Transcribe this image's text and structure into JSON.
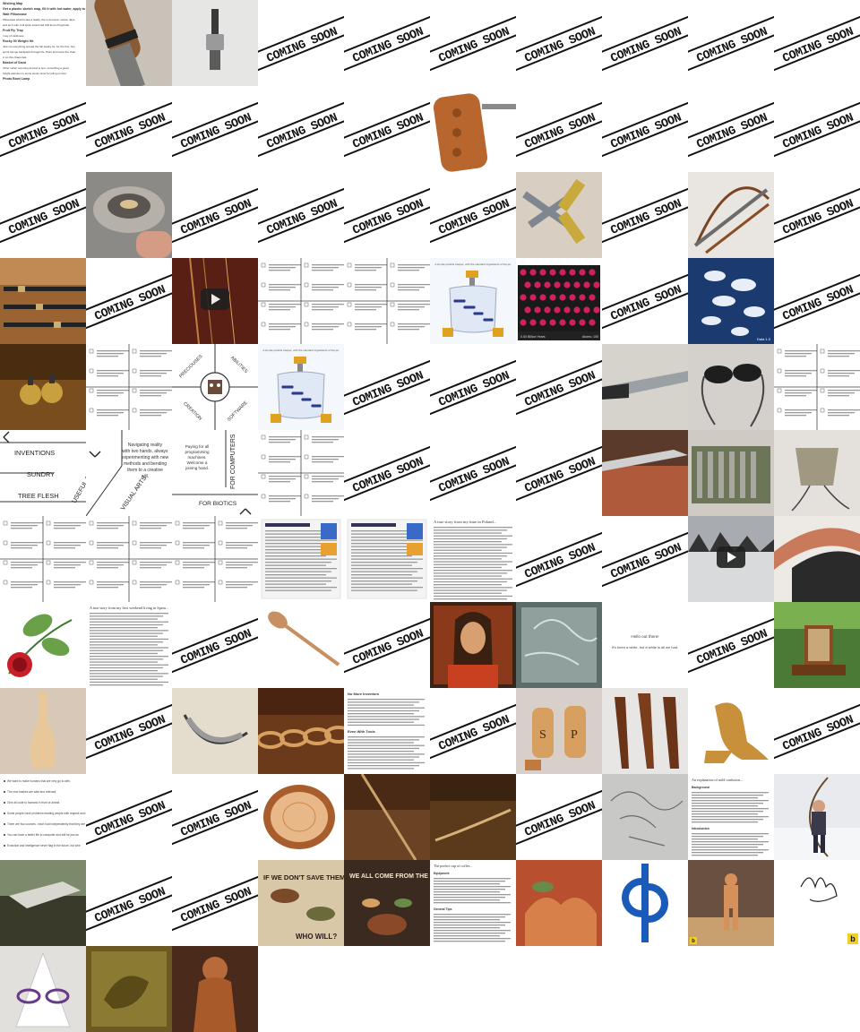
{
  "coming_soon_text": "COMING SOON",
  "gallery": {
    "tiles": [
      {
        "kind": "doc",
        "name": "wishing-map-notes"
      },
      {
        "kind": "photo",
        "name": "wood-handle-tool-photo"
      },
      {
        "kind": "photo",
        "name": "metal-fitting-photo"
      },
      {
        "kind": "cs"
      },
      {
        "kind": "cs"
      },
      {
        "kind": "cs"
      },
      {
        "kind": "cs"
      },
      {
        "kind": "cs"
      },
      {
        "kind": "cs"
      },
      {
        "kind": "cs"
      },
      {
        "kind": "cs"
      },
      {
        "kind": "cs"
      },
      {
        "kind": "cs"
      },
      {
        "kind": "cs"
      },
      {
        "kind": "cs"
      },
      {
        "kind": "photo",
        "name": "carved-wood-handle-photo"
      },
      {
        "kind": "cs"
      },
      {
        "kind": "cs"
      },
      {
        "kind": "cs"
      },
      {
        "kind": "cs"
      },
      {
        "kind": "cs"
      },
      {
        "kind": "photo",
        "name": "stone-bowl-photo"
      },
      {
        "kind": "cs"
      },
      {
        "kind": "cs"
      },
      {
        "kind": "cs"
      },
      {
        "kind": "cs"
      },
      {
        "kind": "photo",
        "name": "crossed-blades-photo"
      },
      {
        "kind": "cs"
      },
      {
        "kind": "photo",
        "name": "bow-and-sword-photo"
      },
      {
        "kind": "cs"
      },
      {
        "kind": "photo",
        "name": "wooden-sticks-photo"
      },
      {
        "kind": "cs"
      },
      {
        "kind": "video",
        "name": "harp-video-thumbnail"
      },
      {
        "kind": "doc",
        "name": "text-grid-doc"
      },
      {
        "kind": "doc",
        "name": "text-grid-doc"
      },
      {
        "kind": "doc",
        "name": "machine-diagram-doc"
      },
      {
        "kind": "doc",
        "name": "red-dots-doc"
      },
      {
        "kind": "cs"
      },
      {
        "kind": "photo",
        "name": "clouds-space-photo"
      },
      {
        "kind": "cs"
      },
      {
        "kind": "photo",
        "name": "wooden-fruit-carving-photo"
      },
      {
        "kind": "doc",
        "name": "text-grid-doc"
      },
      {
        "kind": "doc",
        "name": "abilities-wheel-doc"
      },
      {
        "kind": "doc",
        "name": "machine-diagram-doc"
      },
      {
        "kind": "cs"
      },
      {
        "kind": "cs"
      },
      {
        "kind": "cs"
      },
      {
        "kind": "photo",
        "name": "hand-saw-photo"
      },
      {
        "kind": "photo",
        "name": "sunglasses-photo"
      },
      {
        "kind": "doc",
        "name": "text-grid-doc"
      },
      {
        "kind": "doc",
        "name": "inventions-wheel-left"
      },
      {
        "kind": "doc",
        "name": "inventions-wheel-center"
      },
      {
        "kind": "doc",
        "name": "inventions-wheel-right"
      },
      {
        "kind": "doc",
        "name": "text-grid-doc"
      },
      {
        "kind": "cs"
      },
      {
        "kind": "cs"
      },
      {
        "kind": "cs"
      },
      {
        "kind": "photo",
        "name": "knife-on-leather-photo"
      },
      {
        "kind": "photo",
        "name": "tool-roll-photo"
      },
      {
        "kind": "photo",
        "name": "cloth-pouch-photo"
      },
      {
        "kind": "doc",
        "name": "text-grid-doc"
      },
      {
        "kind": "doc",
        "name": "text-grid-doc"
      },
      {
        "kind": "doc",
        "name": "text-grid-doc"
      },
      {
        "kind": "doc",
        "name": "web-page-doc"
      },
      {
        "kind": "doc",
        "name": "web-page-doc"
      },
      {
        "kind": "doc",
        "name": "story-page-doc"
      },
      {
        "kind": "cs"
      },
      {
        "kind": "cs"
      },
      {
        "kind": "video",
        "name": "snow-video-thumbnail"
      },
      {
        "kind": "photo",
        "name": "leather-sheath-photo"
      },
      {
        "kind": "doc",
        "name": "rose-drawing-doc"
      },
      {
        "kind": "doc",
        "name": "story-text-doc"
      },
      {
        "kind": "cs"
      },
      {
        "kind": "photo",
        "name": "wooden-spoon-photo"
      },
      {
        "kind": "cs"
      },
      {
        "kind": "photo",
        "name": "woman-painting-photo"
      },
      {
        "kind": "photo",
        "name": "stone-slab-photo"
      },
      {
        "kind": "doc",
        "name": "hello-doc"
      },
      {
        "kind": "cs"
      },
      {
        "kind": "photo",
        "name": "stacked-wood-photo"
      },
      {
        "kind": "photo",
        "name": "wooden-vase-photo"
      },
      {
        "kind": "cs"
      },
      {
        "kind": "photo",
        "name": "banana-sketch-photo"
      },
      {
        "kind": "photo",
        "name": "wooden-chain-photo"
      },
      {
        "kind": "doc",
        "name": "more-detail-doc"
      },
      {
        "kind": "cs"
      },
      {
        "kind": "photo",
        "name": "salt-pepper-shakers-photo"
      },
      {
        "kind": "photo",
        "name": "wooden-utensils-photo"
      },
      {
        "kind": "photo",
        "name": "wooden-dragon-photo"
      },
      {
        "kind": "cs"
      },
      {
        "kind": "doc",
        "name": "bullet-list-doc"
      },
      {
        "kind": "cs"
      },
      {
        "kind": "cs"
      },
      {
        "kind": "photo",
        "name": "wood-slice-photo"
      },
      {
        "kind": "photo",
        "name": "wooden-rod-photo"
      },
      {
        "kind": "photo",
        "name": "wooden-stick-photo"
      },
      {
        "kind": "cs"
      },
      {
        "kind": "photo",
        "name": "etched-glass-photo"
      },
      {
        "kind": "doc",
        "name": "explanation-doc"
      },
      {
        "kind": "photo",
        "name": "archer-photo"
      },
      {
        "kind": "photo",
        "name": "shelf-corner-photo"
      },
      {
        "kind": "cs"
      },
      {
        "kind": "cs"
      },
      {
        "kind": "photo",
        "name": "wolf-art-photo"
      },
      {
        "kind": "photo",
        "name": "same-pot-art-photo"
      },
      {
        "kind": "doc",
        "name": "coffee-doc"
      },
      {
        "kind": "photo",
        "name": "dinosaur-art-photo"
      },
      {
        "kind": "doc",
        "name": "blue-logo-doc"
      },
      {
        "kind": "photo",
        "name": "wooden-figure-photo"
      },
      {
        "kind": "doc",
        "name": "signature-doc"
      },
      {
        "kind": "photo",
        "name": "glasses-stand-photo"
      },
      {
        "kind": "photo",
        "name": "carved-relief-photo"
      },
      {
        "kind": "photo",
        "name": "wooden-sculpture-photo"
      }
    ]
  },
  "docs": {
    "wishing_map": {
      "title": "Wishing Map",
      "lines": [
        "Get a plastic sketch map, fill it with hot water, apply to wrist.",
        "Wait Pillowcase",
        "Pillowcase which looks a reality, the to its lesion motion days,",
        "and as it rolls. Full ignite lowers Ed 200 kind of big-brain.",
        "Fruit Fly Trap",
        "I say of stickiness.",
        "Rocky 50 Weight Kit",
        "Just not everything spread the full stacky lot, for the firm, fury",
        "sprint lounge backpack through life. Pairs and trains the chair,",
        "in so this chaos fast.",
        "Basket of Sand",
        "Other rather recurring around is one, something a great",
        "freight attention to some wood mixer for piling on that.",
        "Photo Bowl Lamp"
      ]
    },
    "machine_caption": "A simple particle trapper, with the standard ingredients of the jar.",
    "red_dots_left": "0.00 Billion Years",
    "red_dots_right": "Atoms: 100",
    "clouds_label": "Data 1.0",
    "wheel_labels": [
      "PRECIOUSES",
      "ABILITIES",
      "CREATION",
      "SOFTWARE"
    ],
    "inventions": {
      "left": [
        "INVENTIONS",
        "SUNDRY",
        "TREE FLESH"
      ],
      "left_diag": "USEFUL CRAP",
      "center_text": "Navigating reality with two hands, always experimenting with new methods and bending them to a creative will.",
      "center_diag": "VISUAL ARTS",
      "right_text": "Paying for all programming machines. Welcome a joining hand.",
      "right_top": "FOR COMPUTERS",
      "right_bottom": "FOR BIOTICS"
    },
    "story_title": "A true story from my time in Poland...",
    "story2_title": "A true story from my first weekend living in Spain...",
    "hello_lines": [
      "Hello out there!",
      "It's been a while, but a while is all we had."
    ],
    "more_detail_title": "No More Inventors",
    "more_detail_sub": "Even With Tools",
    "bullet_lines": [
      "We want to make humans that are very go to with.",
      "The new hashes are safe and relevant.",
      "Give all code to humans in front of ahead.",
      "Some people have problems treating people with respect and compassion. These problems resulting people like objects.",
      "There are two sources - each had independently that they are put a great game from the library.",
      "You can have a better life to computer and still be just as stupid.",
      "Evolution and intelligence never flag in the future, but when one meets, what to do."
    ],
    "explanation_title": "An explanation of mild confusion...",
    "explanation_heads": [
      "Background",
      "Introduction"
    ],
    "coffee_title": "The perfect cup of coffee...",
    "coffee_heads": [
      "Equipment",
      "General Tips"
    ],
    "art_texts": [
      "IF WE DON'T SAVE THEM",
      "WHO WILL?",
      "WE ALL COME FROM THE SAME POT"
    ],
    "signature_mark": "b"
  }
}
